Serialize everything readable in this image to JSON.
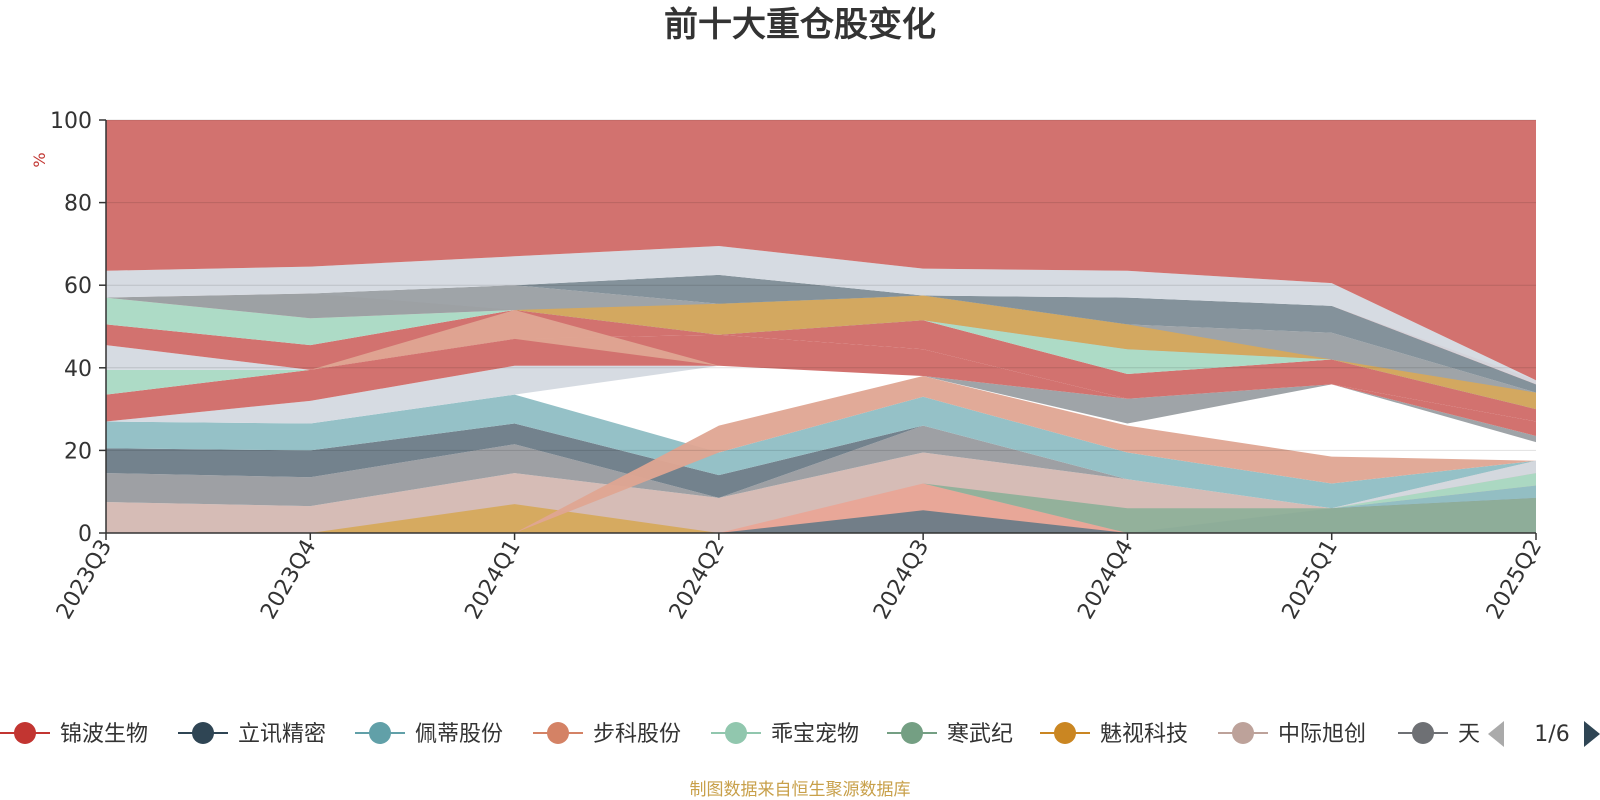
{
  "chart_data": {
    "type": "area",
    "title": "前十大重仓股变化",
    "ylabel": "%",
    "ylim": [
      0,
      100
    ],
    "yticks": [
      "0",
      "20",
      "40",
      "60",
      "80",
      "100"
    ],
    "categories": [
      "2023Q3",
      "2023Q4",
      "2024Q1",
      "2024Q2",
      "2024Q3",
      "2024Q4",
      "2025Q1",
      "2025Q2"
    ],
    "grid": true,
    "legend_position": "bottom",
    "legend_items": [
      "锦波生物",
      "立讯精密",
      "佩蒂股份",
      "步科股份",
      "乖宝宠物",
      "寒武纪",
      "魅视科技",
      "中际旭创",
      "天"
    ],
    "legend_pager": "1/6",
    "layers": [
      {
        "color": "#9a9fa3",
        "bottom": [
          27,
          26.5,
          33.5,
          40.5,
          38,
          26.5,
          36,
          22
        ],
        "top": [
          27,
          26.5,
          33.5,
          40.5,
          38,
          32.5,
          36,
          23.5
        ]
      },
      {
        "color": "#d4b8b2",
        "bottom": [
          0,
          0,
          0,
          0,
          0,
          0,
          0,
          0
        ],
        "top": [
          7.5,
          6.5,
          14.5,
          8.5,
          19.5,
          13,
          6,
          17.5
        ]
      },
      {
        "color": "#d6a95c",
        "bottom": [
          0,
          0,
          0,
          0,
          0,
          0,
          0,
          0
        ],
        "top": [
          0,
          0,
          7,
          0,
          0,
          0,
          0,
          0
        ]
      },
      {
        "color": "#999b9f",
        "bottom": [
          7.5,
          6.5,
          14.5,
          8.5,
          19.5,
          13,
          6,
          17.5
        ],
        "top": [
          14.5,
          13.5,
          21.5,
          8.5,
          26,
          13,
          6,
          17.5
        ]
      },
      {
        "color": "#6b7b87",
        "bottom": [
          14.5,
          13.5,
          21.5,
          8.5,
          26,
          13,
          6,
          17.5
        ],
        "top": [
          20.5,
          20,
          26.5,
          14,
          26,
          13,
          6,
          17.5
        ]
      },
      {
        "color": "#8fbec4",
        "bottom": [
          20.5,
          20,
          26.5,
          14,
          26,
          13,
          6,
          17.5
        ],
        "top": [
          27,
          26.5,
          33.5,
          19.5,
          33,
          19.5,
          12,
          17.5
        ]
      },
      {
        "color": "#dfa592",
        "bottom": [
          0,
          0,
          0,
          19.5,
          33,
          19.5,
          12,
          17.5
        ],
        "top": [
          0,
          0,
          0,
          26,
          38,
          26,
          18.5,
          17.5
        ]
      },
      {
        "color": "#e9a597",
        "bottom": [
          0,
          0,
          0,
          0,
          0,
          0,
          0,
          0
        ],
        "top": [
          0,
          0,
          0,
          0,
          12,
          0,
          0,
          0
        ]
      },
      {
        "color": "#6b7b87",
        "bottom": [
          0,
          0,
          0,
          0,
          0,
          0,
          0,
          0
        ],
        "top": [
          0,
          0,
          0,
          0,
          5.5,
          0,
          6,
          8.5
        ]
      },
      {
        "color": "#8fb09a",
        "bottom": [
          0,
          0,
          0,
          0,
          12,
          0,
          0,
          0
        ],
        "top": [
          0,
          0,
          0,
          0,
          12,
          6,
          6,
          8.5
        ]
      },
      {
        "color": "#8fbec4",
        "bottom": [
          0,
          0,
          0,
          0,
          0,
          0,
          6,
          8.5
        ],
        "top": [
          0,
          0,
          0,
          0,
          0,
          0,
          6,
          11.5
        ]
      },
      {
        "color": "#a9d9c3",
        "bottom": [
          0,
          0,
          0,
          0,
          0,
          0,
          6,
          11.5
        ],
        "top": [
          0,
          0,
          0,
          0,
          0,
          0,
          6,
          14.5
        ]
      },
      {
        "color": "#d4d9e0",
        "bottom": [
          27,
          26.5,
          33.5,
          40.5,
          0,
          0,
          6,
          14.5
        ],
        "top": [
          27,
          32,
          40.5,
          40.5,
          0,
          0,
          6,
          17.5
        ]
      },
      {
        "color": "#d06a67",
        "bottom": [
          27,
          32,
          40.5,
          40.5,
          38,
          32.5,
          36,
          23.5
        ],
        "top": [
          33.5,
          39.5,
          47,
          48,
          44.5,
          32.5,
          36,
          27
        ]
      },
      {
        "color": "#a9d9c3",
        "bottom": [
          33.5,
          39.5,
          47,
          48,
          44.5,
          32.5,
          36,
          27
        ],
        "top": [
          39.5,
          39.5,
          47,
          48,
          44.5,
          32.5,
          36,
          27
        ]
      },
      {
        "color": "#d4d9e0",
        "bottom": [
          39.5,
          39.5,
          47,
          48,
          44.5,
          32.5,
          36,
          27
        ],
        "top": [
          45.5,
          39.5,
          47,
          48,
          44.5,
          32.5,
          36,
          27
        ]
      },
      {
        "color": "#d06a67",
        "bottom": [
          45.5,
          39.5,
          47,
          48,
          44.5,
          32.5,
          36,
          27
        ],
        "top": [
          50.5,
          45.5,
          54,
          48,
          51.5,
          38.5,
          42,
          30
        ]
      },
      {
        "color": "#a9d9c3",
        "bottom": [
          50.5,
          45.5,
          54,
          48,
          51.5,
          38.5,
          42,
          30
        ],
        "top": [
          57,
          52,
          54,
          48,
          51.5,
          44.5,
          42,
          30
        ]
      },
      {
        "color": "#d4b8b2",
        "bottom": [
          57,
          52,
          54,
          48,
          51.5,
          44.5,
          42,
          30
        ],
        "top": [
          57,
          58,
          54,
          48,
          51.5,
          44.5,
          42,
          30
        ]
      },
      {
        "color": "#dfa592",
        "bottom": [
          39.5,
          39.5,
          47,
          40.5,
          44.5,
          32.5,
          36,
          27
        ],
        "top": [
          39.5,
          39.5,
          54,
          40.5,
          44.5,
          32.5,
          36,
          27
        ]
      },
      {
        "color": "#9a9fa3",
        "bottom": [
          57,
          52,
          54,
          48,
          51.5,
          44.5,
          42,
          30
        ],
        "top": [
          57,
          58,
          60,
          55.5,
          57.5,
          50.5,
          48.5,
          34
        ]
      },
      {
        "color": "#d6a95c",
        "bottom": [
          57,
          52,
          54,
          48,
          51.5,
          44.5,
          42,
          30
        ],
        "top": [
          57,
          52,
          54,
          55.5,
          57.5,
          50.5,
          42,
          34
        ]
      },
      {
        "color": "#7d8c96",
        "bottom": [
          57,
          58,
          60,
          55.5,
          57.5,
          50.5,
          48.5,
          34
        ],
        "top": [
          57,
          58,
          60,
          62.5,
          57.5,
          57,
          55,
          36
        ]
      },
      {
        "color": "#d06a67",
        "bottom": [
          57,
          58,
          60,
          62.5,
          57.5,
          57,
          55,
          36
        ],
        "top": [
          57,
          58,
          60,
          62.5,
          57.5,
          57,
          55,
          37
        ]
      },
      {
        "color": "#d4d9e0",
        "bottom": [
          57,
          58,
          60,
          62.5,
          57.5,
          57,
          55,
          36
        ],
        "top": [
          63.5,
          64.5,
          67,
          69.5,
          64,
          63.5,
          60.5,
          37
        ]
      },
      {
        "color": "#d06a67",
        "bottom": [
          63.5,
          64.5,
          67,
          69.5,
          64,
          63.5,
          60.5,
          37
        ],
        "top": [
          100,
          100,
          100,
          100,
          100,
          100,
          100,
          100
        ]
      }
    ],
    "watermark": "制图数据来自恒生聚源数据库"
  },
  "colors": {
    "legend": [
      "#c23531",
      "#2f4554",
      "#61a0a8",
      "#d48265",
      "#91c7ae",
      "#749f83",
      "#ca8622",
      "#bda29a",
      "#6e7074"
    ],
    "title": "#333333",
    "axis_label": "#c23531",
    "watermark": "#c8a04a"
  }
}
